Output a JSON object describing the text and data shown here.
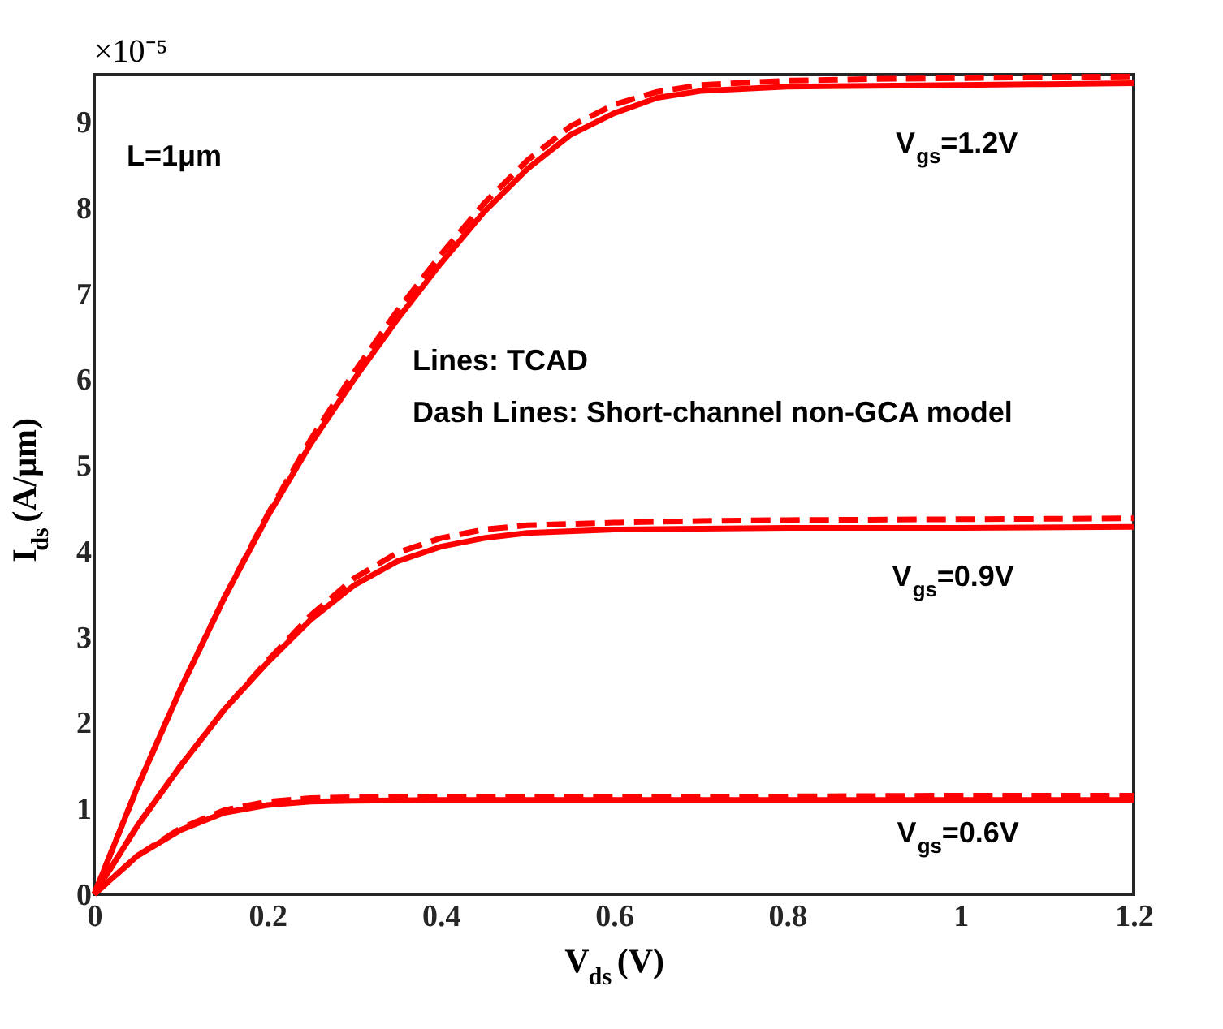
{
  "chart_data": {
    "type": "line",
    "xlabel": "V$_{ds}$(V)",
    "ylabel": "I$_{ds}$(A/μm)",
    "xlim": [
      0,
      1.2
    ],
    "xticks": [
      0,
      0.2,
      0.4,
      0.6,
      0.8,
      1,
      1.2
    ],
    "ylim": [
      0,
      9.55
    ],
    "yticks": [
      0,
      1,
      2,
      3,
      4,
      5,
      6,
      7,
      8,
      9
    ],
    "grid": false,
    "marker": "none",
    "annotations": [
      "×10⁻⁵",
      "L=1μm",
      "Lines: TCAD",
      "Dash Lines: Short-channel non-GCA model",
      "V$_{gs}$=1.2V",
      "V$_{gs}$=0.9V",
      "V$_{gs}$=0.6V"
    ],
    "series": [
      {
        "color": "#ff0000",
        "line_style": "solid",
        "x": [
          0,
          0.05,
          0.1,
          0.15,
          0.2,
          0.25,
          0.3,
          0.35,
          0.4,
          0.45,
          0.5,
          0.55,
          0.6,
          0.65,
          0.7,
          0.8,
          0.9,
          1.0,
          1.1,
          1.2
        ],
        "values": [
          0,
          1.25,
          2.4,
          3.45,
          4.4,
          5.25,
          6.0,
          6.7,
          7.35,
          7.95,
          8.45,
          8.85,
          9.1,
          9.28,
          9.36,
          9.41,
          9.42,
          9.43,
          9.44,
          9.45
        ]
      },
      {
        "color": "#ff0000",
        "line_style": "dashed",
        "x": [
          0,
          0.05,
          0.1,
          0.15,
          0.2,
          0.25,
          0.3,
          0.35,
          0.4,
          0.45,
          0.5,
          0.55,
          0.6,
          0.65,
          0.7,
          0.8,
          0.9,
          1.0,
          1.1,
          1.2
        ],
        "values": [
          0,
          1.25,
          2.4,
          3.45,
          4.42,
          5.3,
          6.08,
          6.8,
          7.45,
          8.05,
          8.55,
          8.95,
          9.2,
          9.35,
          9.43,
          9.48,
          9.5,
          9.51,
          9.52,
          9.53
        ]
      },
      {
        "color": "#ff0000",
        "line_style": "solid",
        "x": [
          0,
          0.05,
          0.1,
          0.15,
          0.2,
          0.25,
          0.3,
          0.35,
          0.4,
          0.45,
          0.5,
          0.6,
          0.7,
          0.8,
          1.0,
          1.2
        ],
        "values": [
          0,
          0.8,
          1.5,
          2.15,
          2.7,
          3.2,
          3.6,
          3.88,
          4.05,
          4.15,
          4.21,
          4.25,
          4.26,
          4.27,
          4.27,
          4.28
        ]
      },
      {
        "color": "#ff0000",
        "line_style": "dashed",
        "x": [
          0,
          0.05,
          0.1,
          0.15,
          0.2,
          0.25,
          0.3,
          0.35,
          0.4,
          0.45,
          0.5,
          0.6,
          0.7,
          0.8,
          1.0,
          1.2
        ],
        "values": [
          0,
          0.8,
          1.5,
          2.15,
          2.72,
          3.25,
          3.68,
          3.98,
          4.15,
          4.25,
          4.3,
          4.33,
          4.35,
          4.36,
          4.37,
          4.38
        ]
      },
      {
        "color": "#ff0000",
        "line_style": "solid",
        "x": [
          0,
          0.05,
          0.1,
          0.15,
          0.2,
          0.25,
          0.3,
          0.4,
          0.6,
          0.8,
          1.0,
          1.2
        ],
        "values": [
          0,
          0.45,
          0.75,
          0.95,
          1.04,
          1.08,
          1.09,
          1.1,
          1.1,
          1.1,
          1.1,
          1.1
        ]
      },
      {
        "color": "#ff0000",
        "line_style": "dashed",
        "x": [
          0,
          0.05,
          0.1,
          0.15,
          0.2,
          0.25,
          0.3,
          0.4,
          0.6,
          0.8,
          1.0,
          1.2
        ],
        "values": [
          0,
          0.45,
          0.77,
          0.98,
          1.08,
          1.12,
          1.13,
          1.14,
          1.14,
          1.14,
          1.15,
          1.15
        ]
      }
    ]
  }
}
